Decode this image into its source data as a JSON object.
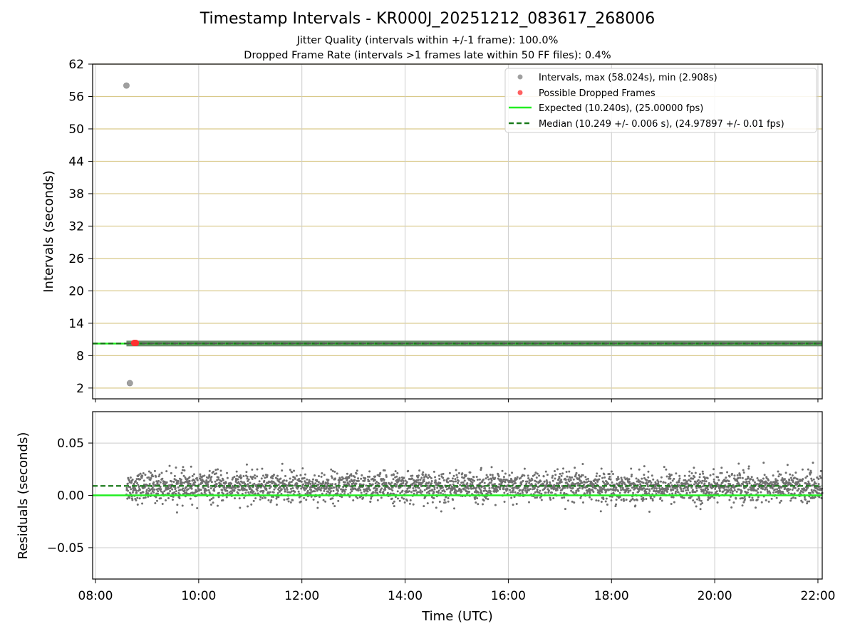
{
  "chart": {
    "title": "Timestamp Intervals - KR000J_20251212_083617_268006",
    "subtitle1": "Jitter Quality (intervals within +/-1 frame): 100.0%",
    "subtitle2": "Dropped Frame Rate (intervals >1 frames late within 50 FF files): 0.4%"
  },
  "colors": {
    "interval_points": "#a0a0a0",
    "dropped_points": "#ff3030",
    "expected_line": "#22ee22",
    "median_line": "#1a7a1a",
    "residual_points": "#707070",
    "h_grid_top": "#d9c98a",
    "grid": "#cccccc"
  },
  "chart_data": [
    {
      "type": "scatter",
      "name": "intervals",
      "ylabel": "Intervals (seconds)",
      "xlim": [
        "08:00",
        "22:05"
      ],
      "ylim": [
        0,
        62
      ],
      "yticks": [
        "2",
        "8",
        "14",
        "20",
        "26",
        "32",
        "38",
        "44",
        "50",
        "56",
        "62"
      ],
      "grid": true,
      "legend_position": "top-right",
      "legend": [
        "Intervals, max (58.024s), min (2.908s)",
        "Possible Dropped Frames",
        "Expected (10.240s), (25.00000 fps)",
        "Median (10.249 +/- 0.006 s), (24.97897 +/- 0.01 fps)"
      ],
      "series": [
        {
          "name": "Intervals, max (58.024s), min (2.908s)",
          "x": [
            "08:36",
            "08:40"
          ],
          "y": [
            58.024,
            2.908
          ],
          "band": {
            "x_start": "08:36",
            "x_end": "22:05",
            "y": 10.249
          }
        },
        {
          "name": "Possible Dropped Frames",
          "x": [
            "08:45",
            "08:47"
          ],
          "y": [
            10.35,
            10.35
          ]
        },
        {
          "name": "Expected (10.240s), (25.00000 fps)",
          "y": 10.24
        },
        {
          "name": "Median (10.249 +/- 0.006 s), (24.97897 +/- 0.01 fps)",
          "y": 10.249
        }
      ]
    },
    {
      "type": "scatter",
      "name": "residuals",
      "xlabel": "Time (UTC)",
      "ylabel": "Residuals (seconds)",
      "xlim": [
        "08:00",
        "22:05"
      ],
      "ylim": [
        -0.08,
        0.08
      ],
      "xticks": [
        "08:00",
        "10:00",
        "12:00",
        "14:00",
        "16:00",
        "18:00",
        "20:00",
        "22:00"
      ],
      "yticks": [
        "0.05",
        "0.00",
        "−0.05"
      ],
      "grid": true,
      "series": [
        {
          "name": "Residuals",
          "x_start": "08:36",
          "x_end": "22:05",
          "mean": 0.008,
          "spread": 0.007,
          "min": -0.02,
          "max": 0.032
        },
        {
          "name": "Expected",
          "y": 0.0
        },
        {
          "name": "Median",
          "y": 0.009
        }
      ]
    }
  ]
}
